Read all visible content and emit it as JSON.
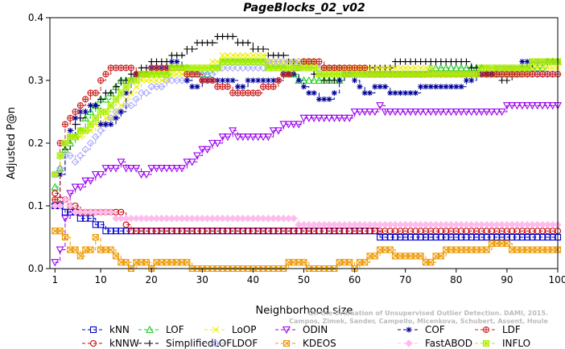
{
  "chart_data": {
    "type": "line",
    "title": "PageBlocks_02_v02",
    "xlabel": "Neighborhood size",
    "ylabel": "Adjusted P@n",
    "xlim": [
      0,
      100
    ],
    "ylim": [
      0,
      0.4
    ],
    "x_ticks": [
      1,
      10,
      20,
      30,
      40,
      50,
      60,
      70,
      80,
      90,
      100
    ],
    "y_ticks": [
      0.0,
      0.1,
      0.2,
      0.3,
      0.4
    ],
    "grid": false,
    "legend_position": "bottom",
    "watermark": [
      "Campos, Zimek, Sander, Campello, Micenkova, Schubert, Assent, Houle",
      "On the Evaluation of Unsupervised Outlier Detection. DAMI, 2015."
    ],
    "series": [
      {
        "name": "kNN",
        "color": "#0000cc",
        "marker": "square",
        "dash": "5,3",
        "points": [
          [
            1,
            0.1
          ],
          [
            3,
            0.092
          ],
          [
            5,
            0.085
          ],
          [
            8,
            0.075
          ],
          [
            10,
            0.066
          ],
          [
            12,
            0.062
          ],
          [
            15,
            0.06
          ],
          [
            40,
            0.06
          ],
          [
            64,
            0.06
          ],
          [
            65,
            0.052
          ],
          [
            100,
            0.052
          ]
        ]
      },
      {
        "name": "kNNW",
        "color": "#cc0000",
        "marker": "circle",
        "dash": "5,3",
        "points": [
          [
            1,
            0.12
          ],
          [
            2,
            0.11
          ],
          [
            4,
            0.1
          ],
          [
            6,
            0.092
          ],
          [
            8,
            0.085
          ],
          [
            14,
            0.085
          ],
          [
            15,
            0.065
          ],
          [
            16,
            0.062
          ],
          [
            30,
            0.062
          ],
          [
            60,
            0.062
          ],
          [
            100,
            0.062
          ]
        ]
      },
      {
        "name": "LOF",
        "color": "#22cc22",
        "marker": "triangle",
        "dash": "5,3",
        "points": [
          [
            1,
            0.13
          ],
          [
            3,
            0.19
          ],
          [
            5,
            0.21
          ],
          [
            7,
            0.24
          ],
          [
            9,
            0.26
          ],
          [
            11,
            0.27
          ],
          [
            13,
            0.29
          ],
          [
            15,
            0.3
          ],
          [
            18,
            0.31
          ],
          [
            22,
            0.31
          ],
          [
            25,
            0.32
          ],
          [
            30,
            0.31
          ],
          [
            35,
            0.33
          ],
          [
            40,
            0.33
          ],
          [
            45,
            0.32
          ],
          [
            50,
            0.3
          ],
          [
            55,
            0.3
          ],
          [
            60,
            0.31
          ],
          [
            70,
            0.31
          ],
          [
            80,
            0.32
          ],
          [
            90,
            0.31
          ],
          [
            95,
            0.32
          ],
          [
            100,
            0.33
          ]
        ]
      },
      {
        "name": "SimplifiedLOF",
        "color": "#000000",
        "marker": "plus",
        "dash": "5,3",
        "points": [
          [
            1,
            0.1
          ],
          [
            2,
            0.15
          ],
          [
            3,
            0.19
          ],
          [
            5,
            0.23
          ],
          [
            7,
            0.25
          ],
          [
            10,
            0.27
          ],
          [
            13,
            0.29
          ],
          [
            15,
            0.3
          ],
          [
            18,
            0.32
          ],
          [
            22,
            0.33
          ],
          [
            25,
            0.34
          ],
          [
            28,
            0.35
          ],
          [
            30,
            0.36
          ],
          [
            35,
            0.37
          ],
          [
            38,
            0.36
          ],
          [
            40,
            0.35
          ],
          [
            45,
            0.34
          ],
          [
            50,
            0.32
          ],
          [
            55,
            0.3
          ],
          [
            60,
            0.31
          ],
          [
            65,
            0.32
          ],
          [
            70,
            0.33
          ],
          [
            80,
            0.33
          ],
          [
            85,
            0.32
          ],
          [
            90,
            0.3
          ],
          [
            95,
            0.33
          ],
          [
            100,
            0.33
          ]
        ]
      },
      {
        "name": "LoOP",
        "color": "#eeee00",
        "marker": "x",
        "dash": "5,3",
        "points": [
          [
            1,
            0.15
          ],
          [
            3,
            0.2
          ],
          [
            5,
            0.21
          ],
          [
            8,
            0.22
          ],
          [
            10,
            0.23
          ],
          [
            13,
            0.25
          ],
          [
            15,
            0.27
          ],
          [
            18,
            0.3
          ],
          [
            22,
            0.3
          ],
          [
            25,
            0.31
          ],
          [
            30,
            0.32
          ],
          [
            35,
            0.34
          ],
          [
            40,
            0.34
          ],
          [
            45,
            0.33
          ],
          [
            50,
            0.33
          ],
          [
            55,
            0.32
          ],
          [
            60,
            0.32
          ],
          [
            70,
            0.32
          ],
          [
            80,
            0.31
          ],
          [
            90,
            0.31
          ],
          [
            100,
            0.32
          ]
        ]
      },
      {
        "name": "LDOF",
        "color": "#aaaaff",
        "marker": "diamond",
        "dash": "5,3",
        "points": [
          [
            1,
            0.15
          ],
          [
            3,
            0.18
          ],
          [
            5,
            0.17
          ],
          [
            7,
            0.19
          ],
          [
            10,
            0.22
          ],
          [
            13,
            0.25
          ],
          [
            16,
            0.26
          ],
          [
            20,
            0.29
          ],
          [
            25,
            0.3
          ],
          [
            30,
            0.31
          ],
          [
            35,
            0.32
          ],
          [
            40,
            0.32
          ],
          [
            45,
            0.33
          ],
          [
            50,
            0.33
          ],
          [
            55,
            0.32
          ],
          [
            60,
            0.31
          ],
          [
            70,
            0.31
          ],
          [
            80,
            0.31
          ],
          [
            90,
            0.31
          ],
          [
            100,
            0.31
          ]
        ]
      },
      {
        "name": "ODIN",
        "color": "#9900ee",
        "marker": "triangle-down",
        "dash": "5,3",
        "points": [
          [
            1,
            0.005
          ],
          [
            2,
            0.03
          ],
          [
            3,
            0.08
          ],
          [
            4,
            0.12
          ],
          [
            6,
            0.13
          ],
          [
            8,
            0.14
          ],
          [
            10,
            0.15
          ],
          [
            12,
            0.16
          ],
          [
            14,
            0.165
          ],
          [
            16,
            0.16
          ],
          [
            18,
            0.15
          ],
          [
            20,
            0.155
          ],
          [
            22,
            0.16
          ],
          [
            25,
            0.16
          ],
          [
            28,
            0.17
          ],
          [
            30,
            0.19
          ],
          [
            33,
            0.2
          ],
          [
            36,
            0.215
          ],
          [
            40,
            0.205
          ],
          [
            43,
            0.21
          ],
          [
            46,
            0.225
          ],
          [
            50,
            0.235
          ],
          [
            55,
            0.24
          ],
          [
            60,
            0.245
          ],
          [
            65,
            0.255
          ],
          [
            68,
            0.245
          ],
          [
            72,
            0.25
          ],
          [
            80,
            0.253
          ],
          [
            90,
            0.255
          ],
          [
            100,
            0.255
          ]
        ]
      },
      {
        "name": "KDEOS",
        "color": "#ee9900",
        "marker": "square-x",
        "dash": "5,3",
        "points": [
          [
            1,
            0.06
          ],
          [
            2,
            0.06
          ],
          [
            3,
            0.045
          ],
          [
            4,
            0.03
          ],
          [
            6,
            0.02
          ],
          [
            8,
            0.03
          ],
          [
            9,
            0.05
          ],
          [
            10,
            0.03
          ],
          [
            12,
            0.03
          ],
          [
            14,
            0.01
          ],
          [
            16,
            0.0
          ],
          [
            18,
            0.01
          ],
          [
            20,
            0.0
          ],
          [
            22,
            0.01
          ],
          [
            26,
            0.01
          ],
          [
            28,
            0.0
          ],
          [
            30,
            0.0
          ],
          [
            45,
            0.0
          ],
          [
            48,
            0.01
          ],
          [
            52,
            0.0
          ],
          [
            55,
            0.0
          ],
          [
            58,
            0.01
          ],
          [
            60,
            0.0
          ],
          [
            62,
            0.01
          ],
          [
            64,
            0.02
          ],
          [
            66,
            0.03
          ],
          [
            68,
            0.02
          ],
          [
            72,
            0.02
          ],
          [
            75,
            0.01
          ],
          [
            78,
            0.03
          ],
          [
            82,
            0.03
          ],
          [
            86,
            0.03
          ],
          [
            88,
            0.04
          ],
          [
            92,
            0.03
          ],
          [
            96,
            0.03
          ],
          [
            100,
            0.03
          ]
        ]
      },
      {
        "name": "COF",
        "color": "#000099",
        "marker": "star",
        "dash": "5,3",
        "points": [
          [
            1,
            0.1
          ],
          [
            2,
            0.15
          ],
          [
            3,
            0.2
          ],
          [
            5,
            0.24
          ],
          [
            7,
            0.25
          ],
          [
            9,
            0.26
          ],
          [
            10,
            0.23
          ],
          [
            12,
            0.23
          ],
          [
            14,
            0.25
          ],
          [
            16,
            0.3
          ],
          [
            18,
            0.31
          ],
          [
            22,
            0.32
          ],
          [
            25,
            0.33
          ],
          [
            28,
            0.29
          ],
          [
            32,
            0.3
          ],
          [
            35,
            0.3
          ],
          [
            38,
            0.29
          ],
          [
            40,
            0.3
          ],
          [
            43,
            0.3
          ],
          [
            48,
            0.31
          ],
          [
            50,
            0.29
          ],
          [
            53,
            0.27
          ],
          [
            55,
            0.27
          ],
          [
            58,
            0.31
          ],
          [
            60,
            0.3
          ],
          [
            62,
            0.28
          ],
          [
            65,
            0.29
          ],
          [
            68,
            0.28
          ],
          [
            70,
            0.28
          ],
          [
            75,
            0.29
          ],
          [
            80,
            0.29
          ],
          [
            85,
            0.31
          ],
          [
            90,
            0.32
          ],
          [
            95,
            0.33
          ],
          [
            100,
            0.33
          ]
        ]
      },
      {
        "name": "FastABOD",
        "color": "#ffbbee",
        "marker": "diamond-filled",
        "dash": "5,3",
        "points": [
          [
            1,
            0.1
          ],
          [
            2,
            0.1
          ],
          [
            3,
            0.11
          ],
          [
            4,
            0.1
          ],
          [
            5,
            0.09
          ],
          [
            8,
            0.085
          ],
          [
            12,
            0.085
          ],
          [
            16,
            0.082
          ],
          [
            20,
            0.08
          ],
          [
            30,
            0.08
          ],
          [
            40,
            0.08
          ],
          [
            48,
            0.08
          ],
          [
            49,
            0.072
          ],
          [
            60,
            0.072
          ],
          [
            70,
            0.072
          ],
          [
            80,
            0.072
          ],
          [
            90,
            0.072
          ],
          [
            100,
            0.072
          ]
        ]
      },
      {
        "name": "LDF",
        "color": "#cc2222",
        "marker": "circle-plus",
        "dash": "5,3",
        "points": [
          [
            1,
            0.11
          ],
          [
            2,
            0.2
          ],
          [
            3,
            0.23
          ],
          [
            5,
            0.25
          ],
          [
            7,
            0.27
          ],
          [
            9,
            0.28
          ],
          [
            11,
            0.31
          ],
          [
            13,
            0.32
          ],
          [
            15,
            0.32
          ],
          [
            18,
            0.31
          ],
          [
            22,
            0.32
          ],
          [
            25,
            0.32
          ],
          [
            28,
            0.31
          ],
          [
            31,
            0.3
          ],
          [
            34,
            0.29
          ],
          [
            36,
            0.28
          ],
          [
            40,
            0.28
          ],
          [
            44,
            0.29
          ],
          [
            48,
            0.32
          ],
          [
            52,
            0.33
          ],
          [
            55,
            0.32
          ],
          [
            60,
            0.32
          ],
          [
            65,
            0.31
          ],
          [
            70,
            0.31
          ],
          [
            80,
            0.31
          ],
          [
            90,
            0.31
          ],
          [
            100,
            0.31
          ]
        ]
      },
      {
        "name": "INFLO",
        "color": "#aaee00",
        "marker": "square-cross",
        "dash": "5,3",
        "points": [
          [
            1,
            0.15
          ],
          [
            3,
            0.2
          ],
          [
            5,
            0.21
          ],
          [
            7,
            0.22
          ],
          [
            9,
            0.24
          ],
          [
            11,
            0.25
          ],
          [
            13,
            0.27
          ],
          [
            15,
            0.29
          ],
          [
            18,
            0.31
          ],
          [
            22,
            0.31
          ],
          [
            25,
            0.32
          ],
          [
            28,
            0.32
          ],
          [
            32,
            0.32
          ],
          [
            35,
            0.33
          ],
          [
            40,
            0.33
          ],
          [
            45,
            0.32
          ],
          [
            50,
            0.32
          ],
          [
            55,
            0.31
          ],
          [
            60,
            0.31
          ],
          [
            70,
            0.31
          ],
          [
            80,
            0.31
          ],
          [
            90,
            0.32
          ],
          [
            100,
            0.33
          ]
        ]
      }
    ]
  }
}
